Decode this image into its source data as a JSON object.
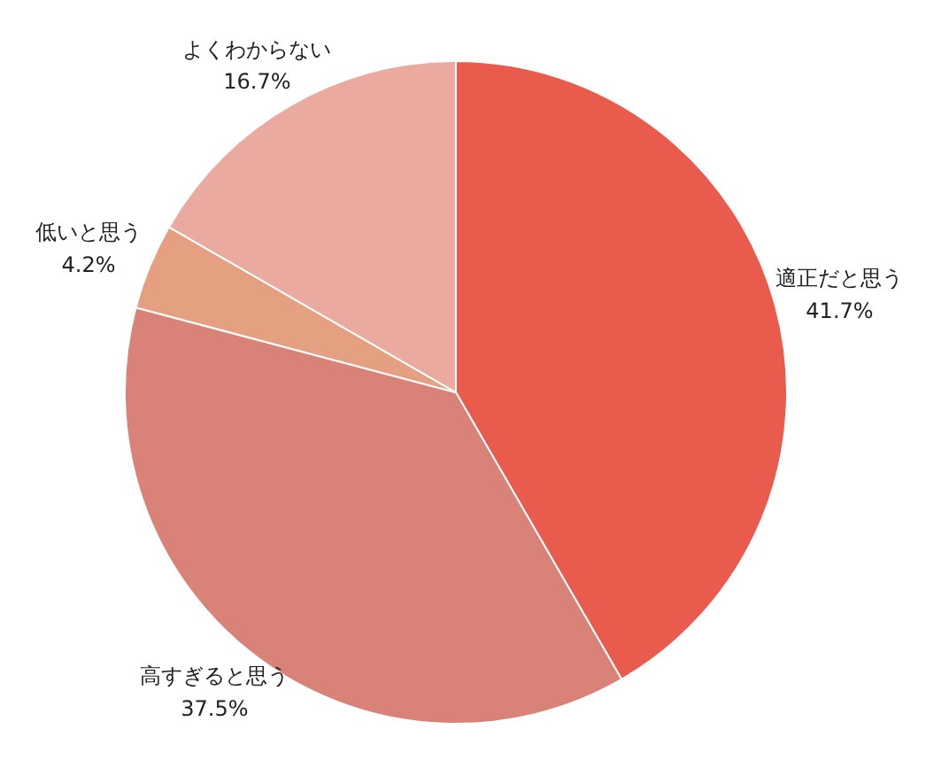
{
  "chart_data": {
    "type": "pie",
    "categories": [
      "適正だと思う",
      "高すぎると思う",
      "低いと思う",
      "よくわからない"
    ],
    "values": [
      41.7,
      37.5,
      4.2,
      16.7
    ],
    "value_labels": [
      "41.7%",
      "37.5%",
      "4.2%",
      "16.7%"
    ],
    "colors": [
      "#e85b4d",
      "#d98277",
      "#e5a082",
      "#ebaaa0"
    ]
  }
}
